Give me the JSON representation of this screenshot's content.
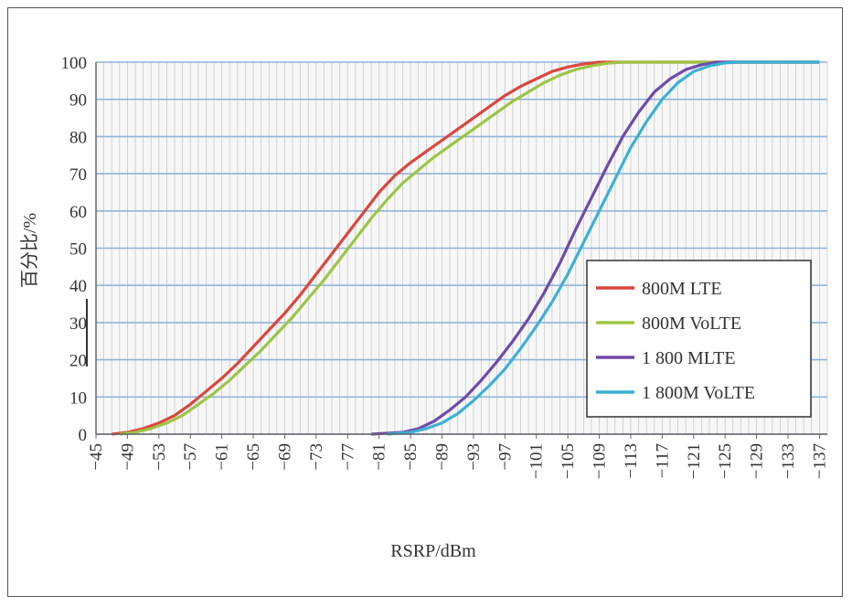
{
  "chart_data": {
    "type": "line",
    "title": "",
    "xlabel": "RSRP/dBm",
    "ylabel": "百分比/%",
    "ylim": [
      0,
      100
    ],
    "xlim": [
      -45,
      -138
    ],
    "yticks": [
      "0",
      "10",
      "20",
      "30",
      "40",
      "50",
      "60",
      "70",
      "80",
      "90",
      "100"
    ],
    "xticks": [
      "-45",
      "-49",
      "-53",
      "-57",
      "-61",
      "-65",
      "-69",
      "-73",
      "-77",
      "-81",
      "-85",
      "-89",
      "-93",
      "-97",
      "-101",
      "-105",
      "-109",
      "-113",
      "-117",
      "-121",
      "-125",
      "-129",
      "-133",
      "-137"
    ],
    "legend_position": "right",
    "series": [
      {
        "name": "800M LTE",
        "color": "#d9473f",
        "points": [
          [
            -47,
            0
          ],
          [
            -49,
            0.5
          ],
          [
            -51,
            1.5
          ],
          [
            -53,
            3
          ],
          [
            -55,
            5
          ],
          [
            -57,
            8
          ],
          [
            -59,
            11.5
          ],
          [
            -61,
            15
          ],
          [
            -63,
            19
          ],
          [
            -65,
            23.5
          ],
          [
            -67,
            28
          ],
          [
            -69,
            32.5
          ],
          [
            -71,
            37.5
          ],
          [
            -73,
            43
          ],
          [
            -75,
            48.5
          ],
          [
            -77,
            54
          ],
          [
            -79,
            59.5
          ],
          [
            -81,
            65
          ],
          [
            -83,
            69.5
          ],
          [
            -85,
            73
          ],
          [
            -87,
            76
          ],
          [
            -89,
            79
          ],
          [
            -91,
            82
          ],
          [
            -93,
            85
          ],
          [
            -95,
            88
          ],
          [
            -97,
            91
          ],
          [
            -99,
            93.5
          ],
          [
            -101,
            95.5
          ],
          [
            -103,
            97.5
          ],
          [
            -105,
            98.7
          ],
          [
            -107,
            99.5
          ],
          [
            -109,
            100
          ],
          [
            -137,
            100
          ]
        ]
      },
      {
        "name": "800M VoLTE",
        "color": "#9cc545",
        "points": [
          [
            -48,
            0
          ],
          [
            -50,
            0.5
          ],
          [
            -52,
            1.5
          ],
          [
            -54,
            3
          ],
          [
            -56,
            5
          ],
          [
            -58,
            8
          ],
          [
            -60,
            11
          ],
          [
            -62,
            14.5
          ],
          [
            -64,
            18.5
          ],
          [
            -66,
            22.5
          ],
          [
            -68,
            27
          ],
          [
            -70,
            31.5
          ],
          [
            -72,
            36.5
          ],
          [
            -74,
            41.5
          ],
          [
            -76,
            47
          ],
          [
            -78,
            52.5
          ],
          [
            -80,
            58
          ],
          [
            -82,
            63
          ],
          [
            -84,
            67.5
          ],
          [
            -86,
            71
          ],
          [
            -88,
            74.5
          ],
          [
            -90,
            77.5
          ],
          [
            -92,
            80.5
          ],
          [
            -94,
            83.5
          ],
          [
            -96,
            86.5
          ],
          [
            -98,
            89.5
          ],
          [
            -100,
            92
          ],
          [
            -102,
            94.5
          ],
          [
            -104,
            96.5
          ],
          [
            -106,
            98
          ],
          [
            -108,
            99
          ],
          [
            -110,
            99.7
          ],
          [
            -112,
            100
          ],
          [
            -137,
            100
          ]
        ]
      },
      {
        "name": "1 800 MLTE",
        "color": "#6f4aa8",
        "points": [
          [
            -80,
            0
          ],
          [
            -84,
            0.5
          ],
          [
            -86,
            1.5
          ],
          [
            -88,
            3.5
          ],
          [
            -90,
            6.5
          ],
          [
            -92,
            10
          ],
          [
            -94,
            14.5
          ],
          [
            -96,
            19.5
          ],
          [
            -98,
            25
          ],
          [
            -100,
            31
          ],
          [
            -102,
            38
          ],
          [
            -104,
            46
          ],
          [
            -106,
            55
          ],
          [
            -108,
            63.5
          ],
          [
            -110,
            72
          ],
          [
            -112,
            80
          ],
          [
            -114,
            86.5
          ],
          [
            -116,
            92
          ],
          [
            -118,
            95.5
          ],
          [
            -120,
            98
          ],
          [
            -122,
            99.3
          ],
          [
            -124,
            100
          ],
          [
            -137,
            100
          ]
        ]
      },
      {
        "name": "1 800M VoLTE",
        "color": "#3cb0d4",
        "points": [
          [
            -82,
            0
          ],
          [
            -85,
            0.5
          ],
          [
            -87,
            1.5
          ],
          [
            -89,
            3
          ],
          [
            -91,
            5.5
          ],
          [
            -93,
            9
          ],
          [
            -95,
            13
          ],
          [
            -97,
            17.5
          ],
          [
            -99,
            23
          ],
          [
            -101,
            29
          ],
          [
            -103,
            35.5
          ],
          [
            -105,
            43
          ],
          [
            -107,
            51.5
          ],
          [
            -109,
            60
          ],
          [
            -111,
            68.5
          ],
          [
            -113,
            77
          ],
          [
            -115,
            84
          ],
          [
            -117,
            90
          ],
          [
            -119,
            94.5
          ],
          [
            -121,
            97.5
          ],
          [
            -123,
            99
          ],
          [
            -125,
            99.8
          ],
          [
            -127,
            100
          ],
          [
            -137,
            100
          ]
        ]
      }
    ]
  }
}
